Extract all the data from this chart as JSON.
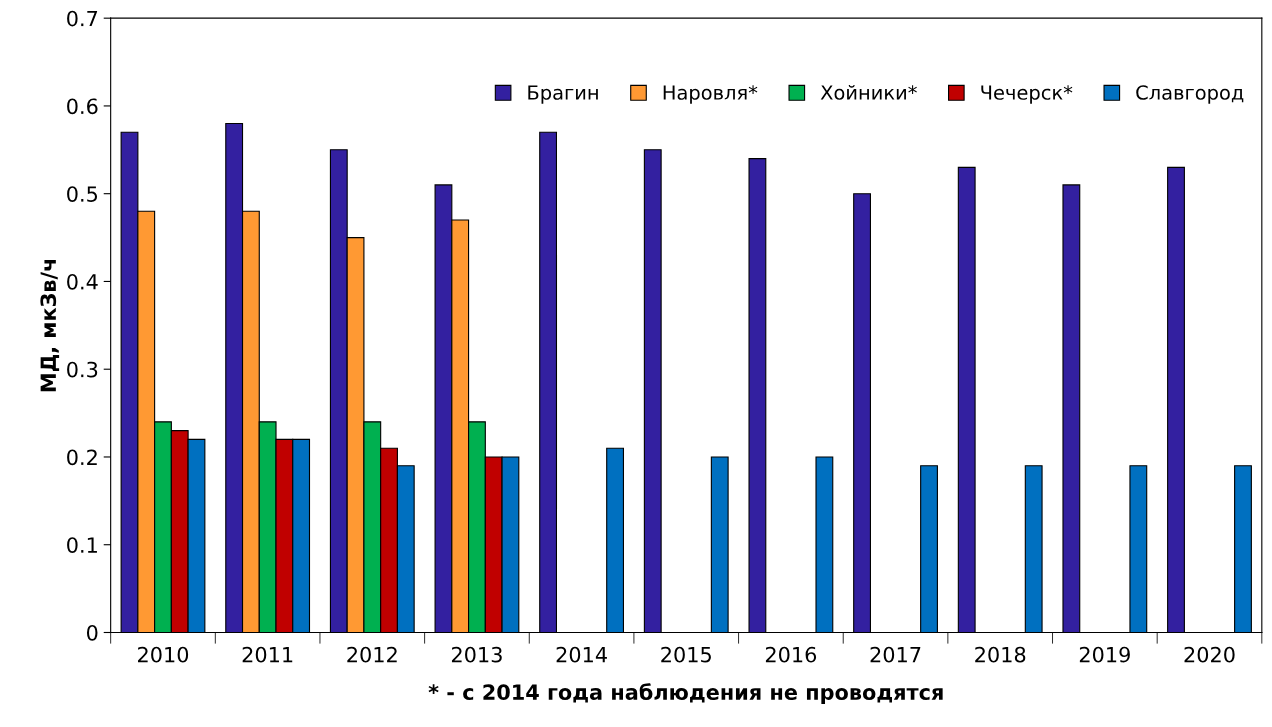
{
  "chart_data": {
    "type": "bar",
    "ylabel": "МД, мкЗв/ч",
    "xlabel": "* - с 2014 года наблюдения не проводятся",
    "categories": [
      "2010",
      "2011",
      "2012",
      "2013",
      "2014",
      "2015",
      "2016",
      "2017",
      "2018",
      "2019",
      "2020"
    ],
    "series": [
      {
        "name": "Брагин",
        "color": "#3320a0",
        "values": [
          0.57,
          0.58,
          0.55,
          0.51,
          0.57,
          0.55,
          0.54,
          0.5,
          0.53,
          0.51,
          0.53
        ]
      },
      {
        "name": "Наровля*",
        "color": "#ff9933",
        "values": [
          0.48,
          0.48,
          0.45,
          0.47,
          null,
          null,
          null,
          null,
          null,
          null,
          null
        ]
      },
      {
        "name": "Хойники*",
        "color": "#00b050",
        "values": [
          0.24,
          0.24,
          0.24,
          0.24,
          null,
          null,
          null,
          null,
          null,
          null,
          null
        ]
      },
      {
        "name": "Чечерск*",
        "color": "#c00000",
        "values": [
          0.23,
          0.22,
          0.21,
          0.2,
          null,
          null,
          null,
          null,
          null,
          null,
          null
        ]
      },
      {
        "name": "Славгород",
        "color": "#0070c0",
        "values": [
          0.22,
          0.22,
          0.19,
          0.2,
          0.21,
          0.2,
          0.2,
          0.19,
          0.19,
          0.19,
          0.19
        ]
      }
    ],
    "ylim": [
      0,
      0.7
    ],
    "yticks": [
      0,
      0.1,
      0.2,
      0.3,
      0.4,
      0.5,
      0.6,
      0.7
    ],
    "grid": false,
    "legend": "top right"
  }
}
